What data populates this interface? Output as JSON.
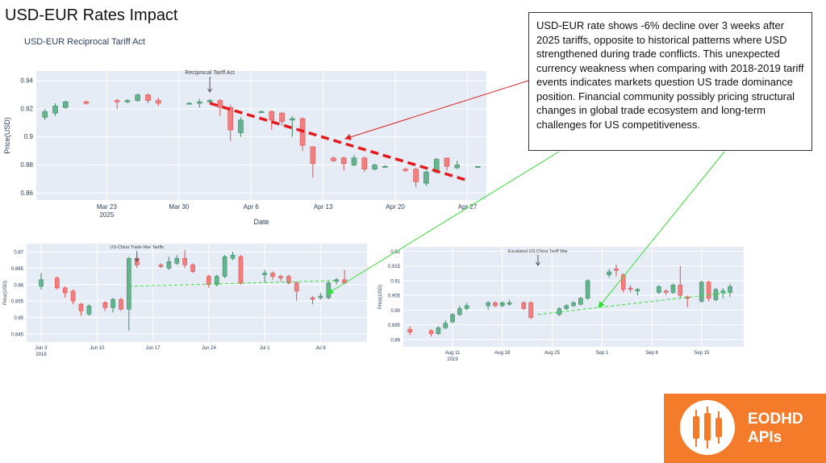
{
  "page_title": "USD-EUR Rates Impact",
  "annotation_text": "USD-EUR rate shows -6% decline over 3 weeks after 2025 tariffs, opposite to historical patterns where USD strengthened during trade conflicts. This unexpected currency weakness when comparing with 2018-2019 tariff events indicates markets question US trade dominance position. Financial community possibly pricing structural changes in global trade ecosystem and long-term challenges for US competitiveness.",
  "logo": {
    "line1": "EODHD",
    "line2": "APIs"
  },
  "colors": {
    "up": "#66b38f",
    "down": "#f08080",
    "panel": "#e5ecf6",
    "trend": "#e41a1c",
    "level": "#33dd33",
    "pointer": "#dd2222"
  },
  "chart_data": [
    {
      "type": "candlestick",
      "title": "USD-EUR Reciprocal Tariff Act",
      "xlabel": "Date",
      "ylabel": "Price(USD)",
      "ylim": [
        0.855,
        0.947
      ],
      "x_range": [
        "2025-03-17",
        "2025-04-28"
      ],
      "x_ticks": [
        {
          "date": "2025-03-23",
          "label": "Mar 23",
          "sub": "2025"
        },
        {
          "date": "2025-03-30",
          "label": "Mar 30",
          "sub": ""
        },
        {
          "date": "2025-04-06",
          "label": "Apr 6",
          "sub": ""
        },
        {
          "date": "2025-04-13",
          "label": "Apr 13",
          "sub": ""
        },
        {
          "date": "2025-04-20",
          "label": "Apr 20",
          "sub": ""
        },
        {
          "date": "2025-04-27",
          "label": "Apr 27",
          "sub": ""
        }
      ],
      "y_ticks": [
        0.86,
        0.88,
        0.9,
        0.92,
        0.94
      ],
      "event": {
        "date": "2025-04-02",
        "label": "Reciprocal Tariff Act"
      },
      "trend": {
        "start": {
          "date": "2025-04-02",
          "value": 0.924
        },
        "end": {
          "date": "2025-04-27",
          "value": 0.869
        }
      },
      "candles": [
        {
          "date": "2025-03-17",
          "open": 0.914,
          "close": 0.918,
          "high": 0.92,
          "low": 0.912
        },
        {
          "date": "2025-03-18",
          "open": 0.917,
          "close": 0.922,
          "high": 0.924,
          "low": 0.915
        },
        {
          "date": "2025-03-19",
          "open": 0.921,
          "close": 0.925,
          "high": 0.926,
          "low": 0.92
        },
        {
          "date": "2025-03-21",
          "open": 0.925,
          "close": 0.924,
          "high": 0.926,
          "low": 0.923
        },
        {
          "date": "2025-03-24",
          "open": 0.926,
          "close": 0.925,
          "high": 0.927,
          "low": 0.92
        },
        {
          "date": "2025-03-25",
          "open": 0.925,
          "close": 0.926,
          "high": 0.927,
          "low": 0.924
        },
        {
          "date": "2025-03-26",
          "open": 0.926,
          "close": 0.93,
          "high": 0.931,
          "low": 0.925
        },
        {
          "date": "2025-03-27",
          "open": 0.93,
          "close": 0.926,
          "high": 0.931,
          "low": 0.924
        },
        {
          "date": "2025-03-28",
          "open": 0.926,
          "close": 0.924,
          "high": 0.928,
          "low": 0.922
        },
        {
          "date": "2025-03-31",
          "open": 0.924,
          "close": 0.924,
          "high": 0.925,
          "low": 0.923
        },
        {
          "date": "2025-04-01",
          "open": 0.924,
          "close": 0.925,
          "high": 0.927,
          "low": 0.921
        },
        {
          "date": "2025-04-02",
          "open": 0.925,
          "close": 0.926,
          "high": 0.927,
          "low": 0.924
        },
        {
          "date": "2025-04-03",
          "open": 0.926,
          "close": 0.921,
          "high": 0.927,
          "low": 0.915
        },
        {
          "date": "2025-04-04",
          "open": 0.921,
          "close": 0.905,
          "high": 0.923,
          "low": 0.897
        },
        {
          "date": "2025-04-05",
          "open": 0.903,
          "close": 0.912,
          "high": 0.914,
          "low": 0.9
        },
        {
          "date": "2025-04-07",
          "open": 0.918,
          "close": 0.918,
          "high": 0.919,
          "low": 0.917
        },
        {
          "date": "2025-04-08",
          "open": 0.918,
          "close": 0.912,
          "high": 0.919,
          "low": 0.905
        },
        {
          "date": "2025-04-09",
          "open": 0.917,
          "close": 0.911,
          "high": 0.918,
          "low": 0.908
        },
        {
          "date": "2025-04-10",
          "open": 0.912,
          "close": 0.913,
          "high": 0.915,
          "low": 0.9
        },
        {
          "date": "2025-04-11",
          "open": 0.913,
          "close": 0.894,
          "high": 0.914,
          "low": 0.89
        },
        {
          "date": "2025-04-12",
          "open": 0.893,
          "close": 0.881,
          "high": 0.893,
          "low": 0.871
        },
        {
          "date": "2025-04-14",
          "open": 0.885,
          "close": 0.883,
          "high": 0.886,
          "low": 0.882
        },
        {
          "date": "2025-04-15",
          "open": 0.885,
          "close": 0.881,
          "high": 0.886,
          "low": 0.876
        },
        {
          "date": "2025-04-16",
          "open": 0.88,
          "close": 0.885,
          "high": 0.887,
          "low": 0.879
        },
        {
          "date": "2025-04-17",
          "open": 0.885,
          "close": 0.877,
          "high": 0.886,
          "low": 0.875
        },
        {
          "date": "2025-04-18",
          "open": 0.877,
          "close": 0.88,
          "high": 0.881,
          "low": 0.876
        },
        {
          "date": "2025-04-19",
          "open": 0.879,
          "close": 0.879,
          "high": 0.88,
          "low": 0.878
        },
        {
          "date": "2025-04-21",
          "open": 0.877,
          "close": 0.876,
          "high": 0.878,
          "low": 0.875
        },
        {
          "date": "2025-04-22",
          "open": 0.877,
          "close": 0.868,
          "high": 0.878,
          "low": 0.864
        },
        {
          "date": "2025-04-23",
          "open": 0.867,
          "close": 0.875,
          "high": 0.876,
          "low": 0.865
        },
        {
          "date": "2025-04-24",
          "open": 0.875,
          "close": 0.884,
          "high": 0.885,
          "low": 0.874
        },
        {
          "date": "2025-04-25",
          "open": 0.885,
          "close": 0.879,
          "high": 0.885,
          "low": 0.876
        },
        {
          "date": "2025-04-26",
          "open": 0.878,
          "close": 0.88,
          "high": 0.883,
          "low": 0.877
        },
        {
          "date": "2025-04-28",
          "open": 0.879,
          "close": 0.879,
          "high": 0.879,
          "low": 0.878
        }
      ]
    },
    {
      "type": "candlestick",
      "title": "",
      "xlabel": "",
      "ylabel": "Price(USD)",
      "ylim": [
        0.8425,
        0.8725
      ],
      "x_range": [
        "2018-06-02",
        "2018-07-13"
      ],
      "x_ticks": [
        {
          "date": "2018-06-03",
          "label": "Jun 3",
          "sub": "2018"
        },
        {
          "date": "2018-06-10",
          "label": "Jun 10",
          "sub": ""
        },
        {
          "date": "2018-06-17",
          "label": "Jun 17",
          "sub": ""
        },
        {
          "date": "2018-06-24",
          "label": "Jun 24",
          "sub": ""
        },
        {
          "date": "2018-07-01",
          "label": "Jul 1",
          "sub": ""
        },
        {
          "date": "2018-07-08",
          "label": "Jul 8",
          "sub": ""
        }
      ],
      "y_ticks": [
        0.845,
        0.85,
        0.855,
        0.86,
        0.865,
        0.87
      ],
      "event": {
        "date": "2018-06-15",
        "label": "US-China Trade War Tariffs"
      },
      "level": {
        "start": {
          "date": "2018-06-14",
          "value": 0.8595
        },
        "end": {
          "date": "2018-07-10",
          "value": 0.8612
        }
      },
      "candles": [
        {
          "date": "2018-06-03",
          "open": 0.8595,
          "close": 0.8615,
          "high": 0.8635,
          "low": 0.8585
        },
        {
          "date": "2018-06-05",
          "open": 0.862,
          "close": 0.859,
          "high": 0.8625,
          "low": 0.8585
        },
        {
          "date": "2018-06-06",
          "open": 0.859,
          "close": 0.8575,
          "high": 0.8595,
          "low": 0.856
        },
        {
          "date": "2018-06-07",
          "open": 0.858,
          "close": 0.855,
          "high": 0.8585,
          "low": 0.854
        },
        {
          "date": "2018-06-08",
          "open": 0.854,
          "close": 0.852,
          "high": 0.8545,
          "low": 0.8505
        },
        {
          "date": "2018-06-09",
          "open": 0.851,
          "close": 0.8535,
          "high": 0.854,
          "low": 0.8505
        },
        {
          "date": "2018-06-11",
          "open": 0.8545,
          "close": 0.853,
          "high": 0.855,
          "low": 0.852
        },
        {
          "date": "2018-06-12",
          "open": 0.853,
          "close": 0.8555,
          "high": 0.856,
          "low": 0.8515
        },
        {
          "date": "2018-06-13",
          "open": 0.8555,
          "close": 0.8525,
          "high": 0.856,
          "low": 0.852
        },
        {
          "date": "2018-06-14",
          "open": 0.8525,
          "close": 0.868,
          "high": 0.8685,
          "low": 0.846
        },
        {
          "date": "2018-06-15",
          "open": 0.868,
          "close": 0.866,
          "high": 0.869,
          "low": 0.865
        },
        {
          "date": "2018-06-18",
          "open": 0.866,
          "close": 0.8655,
          "high": 0.8665,
          "low": 0.865
        },
        {
          "date": "2018-06-19",
          "open": 0.865,
          "close": 0.867,
          "high": 0.8685,
          "low": 0.8645
        },
        {
          "date": "2018-06-20",
          "open": 0.8665,
          "close": 0.868,
          "high": 0.869,
          "low": 0.866
        },
        {
          "date": "2018-06-21",
          "open": 0.868,
          "close": 0.866,
          "high": 0.8705,
          "low": 0.865
        },
        {
          "date": "2018-06-22",
          "open": 0.866,
          "close": 0.864,
          "high": 0.8665,
          "low": 0.8635
        },
        {
          "date": "2018-06-24",
          "open": 0.8625,
          "close": 0.86,
          "high": 0.863,
          "low": 0.859
        },
        {
          "date": "2018-06-25",
          "open": 0.86,
          "close": 0.8625,
          "high": 0.863,
          "low": 0.8595
        },
        {
          "date": "2018-06-26",
          "open": 0.8625,
          "close": 0.8685,
          "high": 0.869,
          "low": 0.862
        },
        {
          "date": "2018-06-27",
          "open": 0.868,
          "close": 0.869,
          "high": 0.87,
          "low": 0.8675
        },
        {
          "date": "2018-06-28",
          "open": 0.8685,
          "close": 0.8605,
          "high": 0.869,
          "low": 0.86
        },
        {
          "date": "2018-07-01",
          "open": 0.863,
          "close": 0.8635,
          "high": 0.8645,
          "low": 0.8605
        },
        {
          "date": "2018-07-02",
          "open": 0.8635,
          "close": 0.8625,
          "high": 0.864,
          "low": 0.8615
        },
        {
          "date": "2018-07-03",
          "open": 0.8625,
          "close": 0.862,
          "high": 0.863,
          "low": 0.861
        },
        {
          "date": "2018-07-04",
          "open": 0.8625,
          "close": 0.8605,
          "high": 0.863,
          "low": 0.86
        },
        {
          "date": "2018-07-05",
          "open": 0.8605,
          "close": 0.858,
          "high": 0.861,
          "low": 0.855
        },
        {
          "date": "2018-07-07",
          "open": 0.856,
          "close": 0.8555,
          "high": 0.8565,
          "low": 0.854
        },
        {
          "date": "2018-07-08",
          "open": 0.856,
          "close": 0.8565,
          "high": 0.8575,
          "low": 0.8555
        },
        {
          "date": "2018-07-09",
          "open": 0.856,
          "close": 0.8605,
          "high": 0.861,
          "low": 0.8555
        },
        {
          "date": "2018-07-10",
          "open": 0.861,
          "close": 0.8615,
          "high": 0.862,
          "low": 0.86
        },
        {
          "date": "2018-07-11",
          "open": 0.8615,
          "close": 0.8605,
          "high": 0.8645,
          "low": 0.86
        }
      ]
    },
    {
      "type": "candlestick",
      "title": "",
      "xlabel": "",
      "ylabel": "Price(USD)",
      "ylim": [
        0.8875,
        0.9215
      ],
      "x_range": [
        "2019-08-05",
        "2019-09-20"
      ],
      "x_ticks": [
        {
          "date": "2019-08-11",
          "label": "Aug 11",
          "sub": "2019"
        },
        {
          "date": "2019-08-18",
          "label": "Aug 18",
          "sub": ""
        },
        {
          "date": "2019-08-25",
          "label": "Aug 25",
          "sub": ""
        },
        {
          "date": "2019-09-01",
          "label": "Sep 1",
          "sub": ""
        },
        {
          "date": "2019-09-08",
          "label": "Sep 8",
          "sub": ""
        },
        {
          "date": "2019-09-15",
          "label": "Sep 15",
          "sub": ""
        }
      ],
      "y_ticks": [
        0.89,
        0.895,
        0.9,
        0.905,
        0.91,
        0.915,
        0.92
      ],
      "event": {
        "date": "2019-08-23",
        "label": "Escalated US-China Tariff War"
      },
      "level": {
        "start": {
          "date": "2019-08-23",
          "value": 0.8985
        },
        "end": {
          "date": "2019-09-19",
          "value": 0.906
        }
      },
      "candles": [
        {
          "date": "2019-08-05",
          "open": 0.8935,
          "close": 0.8925,
          "high": 0.8945,
          "low": 0.8915
        },
        {
          "date": "2019-08-08",
          "open": 0.893,
          "close": 0.892,
          "high": 0.8935,
          "low": 0.891
        },
        {
          "date": "2019-08-09",
          "open": 0.892,
          "close": 0.894,
          "high": 0.8945,
          "low": 0.8915
        },
        {
          "date": "2019-08-10",
          "open": 0.894,
          "close": 0.8955,
          "high": 0.8965,
          "low": 0.8935
        },
        {
          "date": "2019-08-11",
          "open": 0.896,
          "close": 0.8985,
          "high": 0.899,
          "low": 0.8955
        },
        {
          "date": "2019-08-12",
          "open": 0.8985,
          "close": 0.9005,
          "high": 0.9015,
          "low": 0.898
        },
        {
          "date": "2019-08-13",
          "open": 0.9005,
          "close": 0.9015,
          "high": 0.9025,
          "low": 0.9
        },
        {
          "date": "2019-08-16",
          "open": 0.9015,
          "close": 0.9025,
          "high": 0.903,
          "low": 0.9
        },
        {
          "date": "2019-08-17",
          "open": 0.9025,
          "close": 0.9015,
          "high": 0.903,
          "low": 0.901
        },
        {
          "date": "2019-08-18",
          "open": 0.9015,
          "close": 0.9025,
          "high": 0.903,
          "low": 0.901
        },
        {
          "date": "2019-08-19",
          "open": 0.902,
          "close": 0.9025,
          "high": 0.9035,
          "low": 0.9015
        },
        {
          "date": "2019-08-21",
          "open": 0.9025,
          "close": 0.9005,
          "high": 0.903,
          "low": 0.9
        },
        {
          "date": "2019-08-22",
          "open": 0.9025,
          "close": 0.8975,
          "high": 0.903,
          "low": 0.897
        },
        {
          "date": "2019-08-26",
          "open": 0.8985,
          "close": 0.9005,
          "high": 0.901,
          "low": 0.898
        },
        {
          "date": "2019-08-27",
          "open": 0.9005,
          "close": 0.9015,
          "high": 0.902,
          "low": 0.9
        },
        {
          "date": "2019-08-28",
          "open": 0.9015,
          "close": 0.9025,
          "high": 0.903,
          "low": 0.901
        },
        {
          "date": "2019-08-29",
          "open": 0.902,
          "close": 0.904,
          "high": 0.9045,
          "low": 0.9015
        },
        {
          "date": "2019-08-30",
          "open": 0.904,
          "close": 0.91,
          "high": 0.9105,
          "low": 0.9035
        },
        {
          "date": "2019-09-02",
          "open": 0.912,
          "close": 0.913,
          "high": 0.914,
          "low": 0.911
        },
        {
          "date": "2019-09-03",
          "open": 0.914,
          "close": 0.9135,
          "high": 0.9155,
          "low": 0.9115
        },
        {
          "date": "2019-09-04",
          "open": 0.912,
          "close": 0.907,
          "high": 0.9125,
          "low": 0.906
        },
        {
          "date": "2019-09-05",
          "open": 0.9075,
          "close": 0.907,
          "high": 0.9085,
          "low": 0.906
        },
        {
          "date": "2019-09-06",
          "open": 0.9065,
          "close": 0.907,
          "high": 0.9075,
          "low": 0.905
        },
        {
          "date": "2019-09-09",
          "open": 0.906,
          "close": 0.908,
          "high": 0.9085,
          "low": 0.9055
        },
        {
          "date": "2019-09-10",
          "open": 0.9065,
          "close": 0.906,
          "high": 0.907,
          "low": 0.905
        },
        {
          "date": "2019-09-11",
          "open": 0.906,
          "close": 0.9085,
          "high": 0.909,
          "low": 0.9055
        },
        {
          "date": "2019-09-12",
          "open": 0.9085,
          "close": 0.905,
          "high": 0.915,
          "low": 0.904
        },
        {
          "date": "2019-09-13",
          "open": 0.9045,
          "close": 0.904,
          "high": 0.905,
          "low": 0.901
        },
        {
          "date": "2019-09-15",
          "open": 0.903,
          "close": 0.9095,
          "high": 0.91,
          "low": 0.9025
        },
        {
          "date": "2019-09-16",
          "open": 0.9095,
          "close": 0.904,
          "high": 0.91,
          "low": 0.903
        },
        {
          "date": "2019-09-17",
          "open": 0.9035,
          "close": 0.907,
          "high": 0.9075,
          "low": 0.903
        },
        {
          "date": "2019-09-18",
          "open": 0.906,
          "close": 0.9065,
          "high": 0.9075,
          "low": 0.904
        },
        {
          "date": "2019-09-19",
          "open": 0.906,
          "close": 0.908,
          "high": 0.909,
          "low": 0.9045
        }
      ]
    }
  ]
}
